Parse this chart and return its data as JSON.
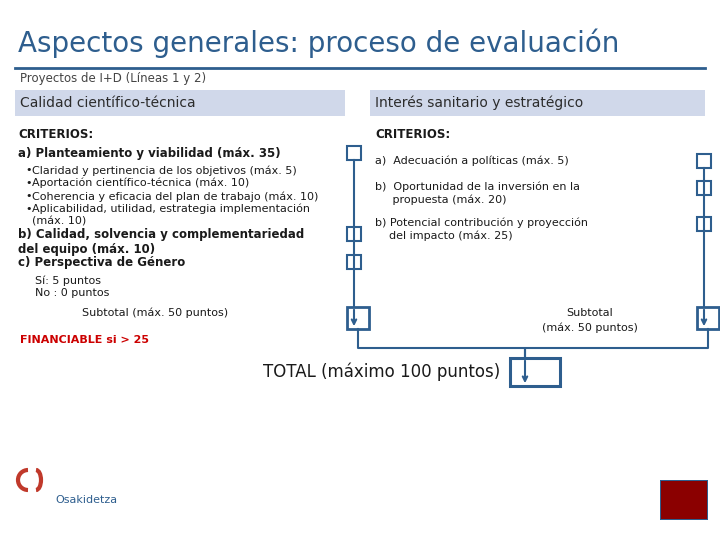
{
  "title": "Aspectos generales: proceso de evaluación",
  "subtitle": "Proyectos de I+D (Líneas 1 y 2)",
  "left_header": "Calidad científico-técnica",
  "right_header": "Interés sanitario y estratégico",
  "criterios_label": "CRITERIOS:",
  "left_items_a_bold": "a) Planteamiento y viabilidad (máx. 35)",
  "left_bullets": [
    "Claridad y pertinencia de los objetivos (máx. 5)",
    "Aportación científico-técnica (máx. 10)",
    "Coherencia y eficacia del plan de trabajo (máx. 10)",
    "Aplicabilidad, utilidad, estrategia implementación\n(máx. 10)"
  ],
  "left_item_b": "b) Calidad, solvencia y complementariedad\ndel equipo (máx. 10)",
  "left_item_c": "c) Perspectiva de Género",
  "left_item_si": "Sí: 5 puntos",
  "left_item_no": "No : 0 puntos",
  "subtotal_left": "Subtotal (máx. 50 puntos)",
  "financiable": "FINANCIABLE si > 25",
  "right_item_a": "a)  Adecuación a políticas (máx. 5)",
  "right_item_b1": "b)  Oportunidad de la inversión en la\n     propuesta (máx. 20)",
  "right_item_b2": "b) Potencial contribución y proyección\n    del impacto (máx. 25)",
  "subtotal_right": "Subtotal\n(máx. 50 puntos)",
  "total": "TOTAL (máximo 100 puntos)",
  "bg_color": "#ffffff",
  "title_color": "#2e5e8e",
  "header_bg_color": "#d0d8ea",
  "header_text_color": "#2c2c2c",
  "line_color": "#2e5e8e",
  "box_color": "#2e5e8e",
  "financiable_color": "#cc0000",
  "subtitle_color": "#444444",
  "body_text_color": "#1a1a1a",
  "bold_color": "#1a1a1a"
}
